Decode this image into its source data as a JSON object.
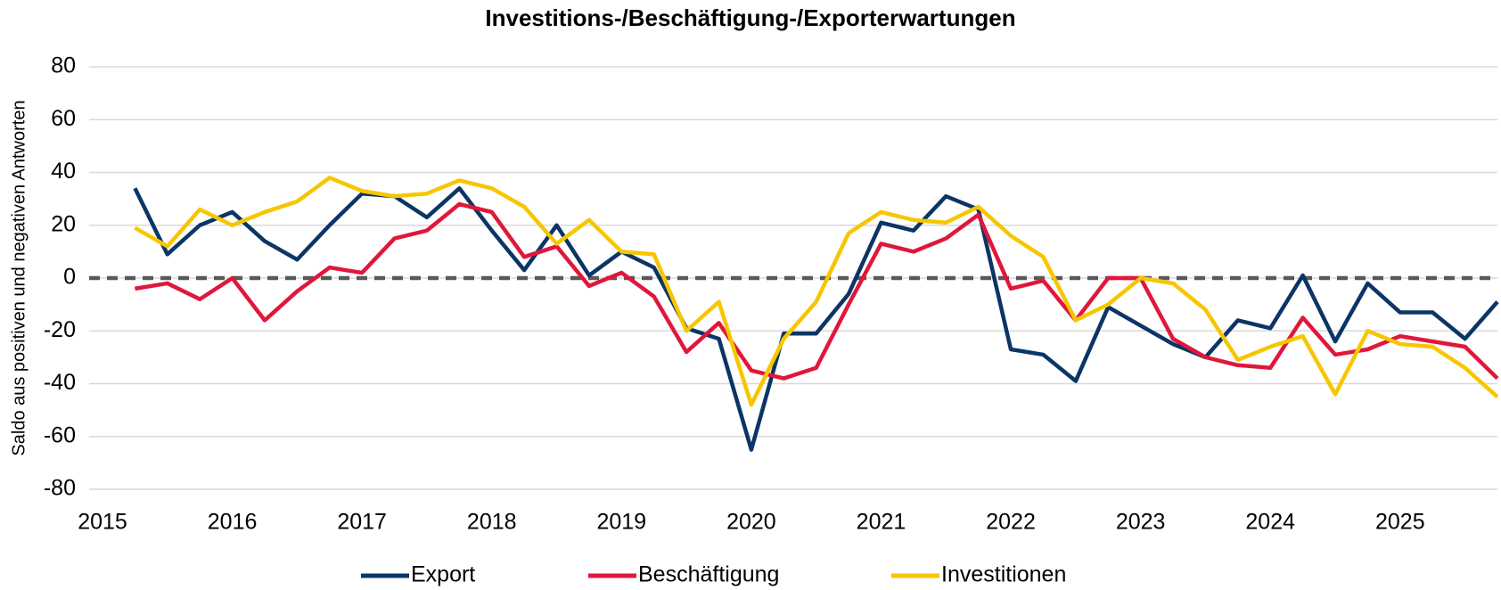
{
  "chart_data": {
    "type": "line",
    "title": "Investitions-/Beschäftigung-/Exporterwartungen",
    "y_label": "Saldo aus positiven und negativen Antworten",
    "x": [
      2015.25,
      2015.5,
      2015.75,
      2016,
      2016.25,
      2016.5,
      2016.75,
      2017,
      2017.25,
      2017.5,
      2017.75,
      2018,
      2018.25,
      2018.5,
      2018.75,
      2019,
      2019.25,
      2019.5,
      2019.75,
      2020,
      2020.25,
      2020.5,
      2020.75,
      2021,
      2021.25,
      2021.5,
      2021.75,
      2022,
      2022.25,
      2022.5,
      2022.75,
      2023,
      2023.25,
      2023.5,
      2023.75,
      2024,
      2024.25,
      2024.5,
      2024.75,
      2025,
      2025.25,
      2025.5,
      2025.75
    ],
    "series": [
      {
        "name": "Export",
        "color": "#0b3566",
        "values": [
          34,
          9,
          20,
          25,
          14,
          7,
          20,
          32,
          31,
          23,
          34,
          18,
          3,
          20,
          1,
          10,
          4,
          -19,
          -23,
          -65,
          -21,
          -21,
          -6,
          21,
          18,
          31,
          26,
          -27,
          -29,
          -39,
          -11,
          -18,
          -25,
          -30,
          -16,
          -19,
          1,
          -24,
          -2,
          -13,
          -13,
          -23,
          -9
        ]
      },
      {
        "name": "Beschäftigung",
        "color": "#e0173b",
        "values": [
          -4,
          -2,
          -8,
          0,
          -16,
          -5,
          4,
          2,
          15,
          18,
          28,
          25,
          8,
          12,
          -3,
          2,
          -7,
          -28,
          -17,
          -35,
          -38,
          -34,
          -10,
          13,
          10,
          15,
          24,
          -4,
          -1,
          -16,
          0,
          0,
          -23,
          -30,
          -33,
          -34,
          -15,
          -29,
          -27,
          -22,
          -24,
          -26,
          -38
        ]
      },
      {
        "name": "Investitionen",
        "color": "#f7c600",
        "values": [
          19,
          12,
          26,
          20,
          25,
          29,
          38,
          33,
          31,
          32,
          37,
          34,
          27,
          13,
          22,
          10,
          9,
          -20,
          -9,
          -48,
          -23,
          -9,
          17,
          25,
          22,
          21,
          27,
          16,
          8,
          -16,
          -10,
          0,
          -2,
          -12,
          -31,
          -26,
          -22,
          -44,
          -20,
          -25,
          -26,
          -34,
          -45
        ]
      }
    ],
    "xlim": [
      2015,
      2025.75
    ],
    "xticks": [
      2015,
      2016,
      2017,
      2018,
      2019,
      2020,
      2021,
      2022,
      2023,
      2024,
      2025
    ],
    "ylim": [
      -80,
      80
    ],
    "yticks": [
      -80,
      -60,
      -40,
      -20,
      0,
      20,
      40,
      60,
      80
    ],
    "grid": true,
    "reference_line": 0,
    "legend": "bottom"
  }
}
